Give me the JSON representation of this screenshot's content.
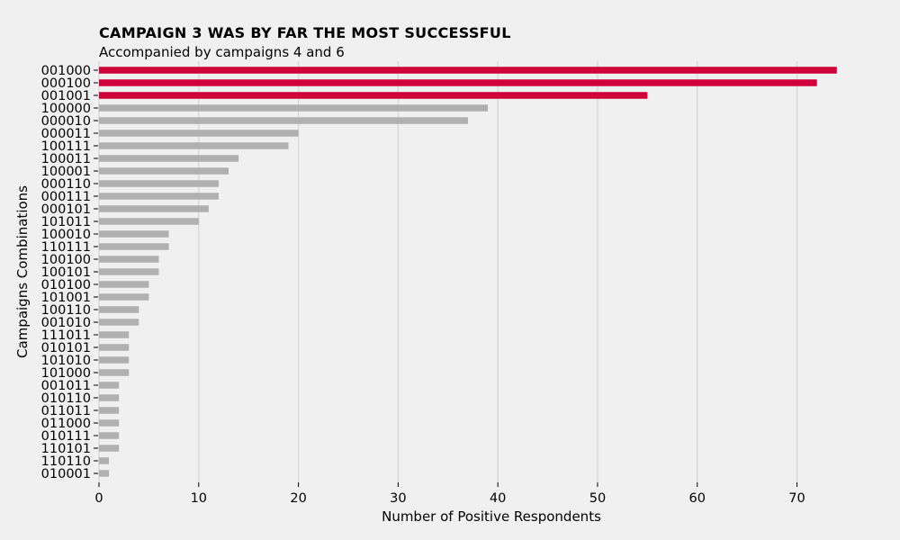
{
  "chart_data": {
    "type": "bar",
    "orientation": "horizontal",
    "title": "CAMPAIGN 3 WAS BY FAR THE MOST SUCCESSFUL",
    "subtitle": "Accompanied by campaigns 4 and 6",
    "xlabel": "Number of Positive Respondents",
    "ylabel": "Campaigns Combinations",
    "xlim": [
      0,
      76
    ],
    "xticks": [
      0,
      10,
      20,
      30,
      40,
      50,
      60,
      70
    ],
    "grid": "vertical",
    "colors": {
      "highlight": "#d0003a",
      "default": "#b0b0b0",
      "background": "#f0f0f0"
    },
    "categories": [
      "001000",
      "000100",
      "001001",
      "100000",
      "000010",
      "000011",
      "100111",
      "100011",
      "100001",
      "000110",
      "000111",
      "000101",
      "101011",
      "100010",
      "110111",
      "100100",
      "100101",
      "010100",
      "101001",
      "100110",
      "001010",
      "111011",
      "010101",
      "101010",
      "101000",
      "001011",
      "010110",
      "011011",
      "011000",
      "010111",
      "110101",
      "110110",
      "010001"
    ],
    "values": [
      74,
      72,
      55,
      39,
      37,
      20,
      19,
      14,
      13,
      12,
      12,
      11,
      10,
      7,
      7,
      6,
      6,
      5,
      5,
      4,
      4,
      3,
      3,
      3,
      3,
      2,
      2,
      2,
      2,
      2,
      2,
      1,
      1
    ],
    "highlighted": [
      "001000",
      "000100",
      "001001"
    ]
  }
}
